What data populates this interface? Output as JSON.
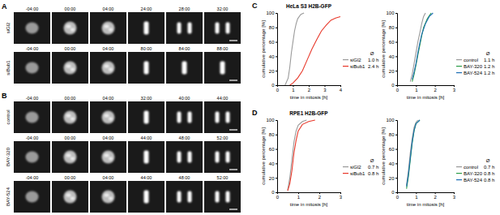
{
  "figure": {
    "panels": [
      {
        "label": "A",
        "rows": [
          {
            "condition": "siGl2",
            "times": [
              "-04:00",
              "00:00",
              "04:00",
              "24:00",
              "28:00",
              "32:00"
            ]
          },
          {
            "condition": "siBub1",
            "times": [
              "-04:00",
              "00:00",
              "04:00",
              "80:00",
              "84:00",
              "88:00"
            ]
          }
        ]
      },
      {
        "label": "B",
        "rows": [
          {
            "condition": "control",
            "times": [
              "-04:00",
              "00:00",
              "04:00",
              "32:00",
              "40:00",
              "44:00"
            ]
          },
          {
            "condition": "BAY-320",
            "times": [
              "-04:00",
              "00:00",
              "04:00",
              "44:00",
              "48:00",
              "52:00"
            ]
          },
          {
            "condition": "BAY-524",
            "times": [
              "-04:00",
              "00:00",
              "04:00",
              "44:00",
              "48:00",
              "52:00"
            ]
          }
        ]
      },
      {
        "label": "C",
        "title": "HeLa S3 H2B-GFP"
      },
      {
        "label": "D",
        "title": "RPE1 H2B-GFP"
      }
    ]
  },
  "chart_data": [
    {
      "type": "line",
      "x_label": "time in mitosis [h]",
      "y_label": "cumulative percentage [%]",
      "xlim": [
        0,
        4
      ],
      "xticks": [
        0,
        1,
        2,
        3,
        4
      ],
      "ylim": [
        0,
        100
      ],
      "yticks": [
        0,
        20,
        40,
        60,
        80,
        100
      ],
      "legend_title": "Ø",
      "series": [
        {
          "name": "siGl2",
          "mean_label": "1.0 h",
          "color": "#9a9a9a",
          "x": [
            0.5,
            0.7,
            0.8,
            0.9,
            1.0,
            1.1,
            1.2,
            1.3,
            1.5,
            1.7
          ],
          "values": [
            0,
            10,
            25,
            45,
            60,
            75,
            85,
            92,
            98,
            100
          ]
        },
        {
          "name": "siBub1",
          "mean_label": "2.4 h",
          "color": "#e8392b",
          "x": [
            0.8,
            1.0,
            1.3,
            1.6,
            1.9,
            2.2,
            2.5,
            2.8,
            3.1,
            3.4,
            3.7,
            4.0
          ],
          "values": [
            0,
            3,
            10,
            20,
            35,
            50,
            63,
            75,
            83,
            90,
            93,
            95
          ]
        }
      ]
    },
    {
      "type": "line",
      "x_label": "time in mitosis [h]",
      "y_label": "cumulative percentage [%]",
      "xlim": [
        0,
        3
      ],
      "xticks": [
        0,
        1,
        2,
        3
      ],
      "ylim": [
        0,
        100
      ],
      "yticks": [
        0,
        20,
        40,
        60,
        80,
        100
      ],
      "legend_title": "Ø",
      "series": [
        {
          "name": "control",
          "mean_label": "1.1 h",
          "color": "#9a9a9a",
          "x": [
            0.7,
            0.8,
            0.9,
            1.0,
            1.1,
            1.2,
            1.3,
            1.4,
            1.5
          ],
          "values": [
            5,
            15,
            30,
            45,
            60,
            72,
            85,
            95,
            100
          ]
        },
        {
          "name": "BAY-320",
          "mean_label": "1.2 h",
          "color": "#2e9e4a",
          "x": [
            0.8,
            0.9,
            1.0,
            1.1,
            1.2,
            1.3,
            1.4,
            1.6,
            1.8
          ],
          "values": [
            5,
            15,
            28,
            42,
            55,
            68,
            80,
            92,
            100
          ]
        },
        {
          "name": "BAY-524",
          "mean_label": "1.2 h",
          "color": "#1f6fb5",
          "x": [
            0.8,
            0.9,
            1.0,
            1.1,
            1.2,
            1.3,
            1.5,
            1.7,
            1.9
          ],
          "values": [
            8,
            18,
            30,
            45,
            58,
            70,
            85,
            95,
            100
          ]
        }
      ]
    },
    {
      "type": "line",
      "x_label": "time in mitosis [h]",
      "y_label": "cumulative percentage [%]",
      "xlim": [
        0,
        3
      ],
      "xticks": [
        0,
        1,
        2,
        3
      ],
      "ylim": [
        0,
        100
      ],
      "yticks": [
        0,
        20,
        40,
        60,
        80,
        100
      ],
      "legend_title": "Ø",
      "series": [
        {
          "name": "siGl2",
          "mean_label": "0.7 h",
          "color": "#9a9a9a",
          "x": [
            0.5,
            0.6,
            0.7,
            0.8,
            0.9,
            1.0,
            1.2,
            1.4
          ],
          "values": [
            3,
            20,
            45,
            70,
            85,
            93,
            98,
            100
          ]
        },
        {
          "name": "siBub1",
          "mean_label": "0.8 h",
          "color": "#e8392b",
          "x": [
            0.5,
            0.6,
            0.7,
            0.8,
            0.9,
            1.0,
            1.2,
            1.5,
            1.8
          ],
          "values": [
            2,
            12,
            30,
            55,
            72,
            85,
            94,
            98,
            100
          ]
        }
      ]
    },
    {
      "type": "line",
      "x_label": "time in mitosis [h]",
      "y_label": "cumulative percentage [%]",
      "xlim": [
        0,
        3
      ],
      "xticks": [
        0,
        1,
        2,
        3
      ],
      "ylim": [
        0,
        100
      ],
      "yticks": [
        0,
        20,
        40,
        60,
        80,
        100
      ],
      "legend_title": "Ø",
      "series": [
        {
          "name": "control",
          "mean_label": "0.7 h",
          "color": "#9a9a9a",
          "x": [
            0.5,
            0.6,
            0.7,
            0.8,
            0.9,
            1.0,
            1.1
          ],
          "values": [
            10,
            30,
            55,
            75,
            90,
            97,
            100
          ]
        },
        {
          "name": "BAY-320",
          "mean_label": "0.8 h",
          "color": "#2e9e4a",
          "x": [
            0.5,
            0.6,
            0.7,
            0.8,
            0.9,
            1.0,
            1.2
          ],
          "values": [
            5,
            22,
            45,
            68,
            85,
            95,
            100
          ]
        },
        {
          "name": "BAY-524",
          "mean_label": "0.8 h",
          "color": "#1f6fb5",
          "x": [
            0.5,
            0.6,
            0.7,
            0.8,
            0.9,
            1.0,
            1.2
          ],
          "values": [
            8,
            25,
            48,
            70,
            86,
            95,
            100
          ]
        }
      ]
    }
  ]
}
